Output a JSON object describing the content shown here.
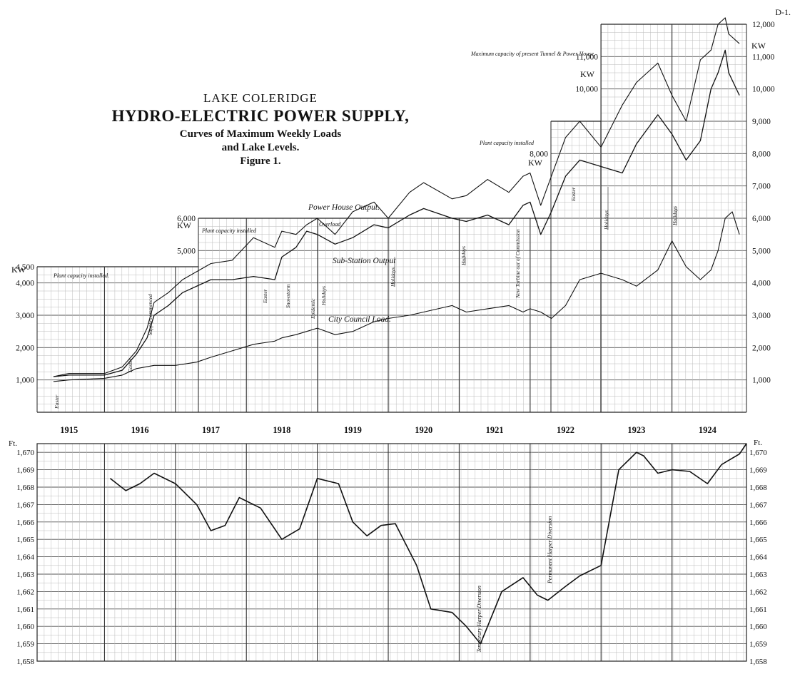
{
  "sheet_label": "D-1.",
  "title": {
    "line1": "LAKE COLERIDGE",
    "line2": "HYDRO-ELECTRIC POWER SUPPLY,",
    "line3": "Curves of Maximum Weekly Loads",
    "line4": "and Lake Levels.",
    "line5": "Figure 1."
  },
  "chart_data": [
    {
      "type": "line",
      "title": "Curves of Maximum Weekly Loads",
      "xlabel": "",
      "ylabel": "KW",
      "x_tick_labels": [
        "1915",
        "1916",
        "1917",
        "1918",
        "1919",
        "1920",
        "1921",
        "1922",
        "1923",
        "1924"
      ],
      "xlim": [
        1914.55,
        1924.55
      ],
      "ylim": [
        0,
        12000
      ],
      "y_tick_labels_left": [
        "1,000",
        "2,000",
        "3,000",
        "4,000",
        "4,500",
        "5,000",
        "6,000",
        "8,000",
        "10,000",
        "11,000"
      ],
      "y_tick_labels_right": [
        "1,000",
        "2,000",
        "3,000",
        "4,000",
        "5,000",
        "6,000",
        "7,000",
        "8,000",
        "9,000",
        "10,000",
        "11,000",
        "12,000"
      ],
      "unit_labels": [
        "KW",
        "KW",
        "KW",
        "KW",
        "KW"
      ],
      "series": [
        {
          "name": "Power House Output.",
          "x": [
            1914.78,
            1915.0,
            1915.5,
            1915.75,
            1915.95,
            1916.1,
            1916.2,
            1916.4,
            1916.6,
            1917.0,
            1917.3,
            1917.6,
            1917.9,
            1918.0,
            1918.2,
            1918.35,
            1918.5,
            1918.75,
            1919.0,
            1919.3,
            1919.5,
            1919.8,
            1920.0,
            1920.4,
            1920.6,
            1920.9,
            1921.2,
            1921.4,
            1921.5,
            1921.65,
            1921.8,
            1922.0,
            1922.2,
            1922.5,
            1922.8,
            1923.0,
            1923.3,
            1923.5,
            1923.7,
            1923.9,
            1924.05,
            1924.15,
            1924.25,
            1924.3,
            1924.45
          ],
          "y": [
            1100,
            1200,
            1200,
            1400,
            1900,
            2600,
            3400,
            3700,
            4100,
            4600,
            4700,
            5400,
            5100,
            5600,
            5500,
            5800,
            6000,
            5500,
            6200,
            6500,
            6000,
            6800,
            7100,
            6600,
            6700,
            7200,
            6800,
            7300,
            7400,
            6400,
            7300,
            8500,
            9000,
            8200,
            9500,
            10200,
            10800,
            9800,
            9000,
            10900,
            11200,
            12000,
            12200,
            11700,
            11400
          ]
        },
        {
          "name": "Sub-Station Output",
          "x": [
            1914.78,
            1915.0,
            1915.5,
            1915.75,
            1915.95,
            1916.1,
            1916.2,
            1916.4,
            1916.6,
            1917.0,
            1917.3,
            1917.6,
            1917.9,
            1918.0,
            1918.2,
            1918.35,
            1918.5,
            1918.75,
            1919.0,
            1919.3,
            1919.5,
            1919.8,
            1920.0,
            1920.4,
            1920.6,
            1920.9,
            1921.2,
            1921.4,
            1921.5,
            1921.65,
            1921.8,
            1922.0,
            1922.2,
            1922.5,
            1922.8,
            1923.0,
            1923.3,
            1923.5,
            1923.7,
            1923.9,
            1924.05,
            1924.15,
            1924.25,
            1924.3,
            1924.45
          ],
          "y": [
            1100,
            1150,
            1150,
            1300,
            1800,
            2300,
            3000,
            3300,
            3700,
            4100,
            4100,
            4200,
            4100,
            4800,
            5100,
            5600,
            5500,
            5200,
            5400,
            5800,
            5700,
            6100,
            6300,
            6000,
            5900,
            6100,
            5800,
            6400,
            6500,
            5500,
            6200,
            7300,
            7800,
            7600,
            7400,
            8300,
            9200,
            8600,
            7800,
            8400,
            10000,
            10500,
            11200,
            10500,
            9800
          ]
        },
        {
          "name": "City Council Load.",
          "x": [
            1914.78,
            1915.0,
            1915.5,
            1915.75,
            1915.95,
            1916.2,
            1916.5,
            1916.8,
            1917.0,
            1917.3,
            1917.6,
            1917.9,
            1918.0,
            1918.2,
            1918.35,
            1918.5,
            1918.75,
            1919.0,
            1919.3,
            1919.5,
            1919.8,
            1920.0,
            1920.4,
            1920.6,
            1920.9,
            1921.2,
            1921.4,
            1921.5,
            1921.65,
            1921.8,
            1922.0,
            1922.2,
            1922.5,
            1922.8,
            1923.0,
            1923.3,
            1923.5,
            1923.7,
            1923.9,
            1924.05,
            1924.15,
            1924.25,
            1924.35,
            1924.45
          ],
          "y": [
            950,
            1000,
            1050,
            1150,
            1350,
            1450,
            1450,
            1550,
            1700,
            1900,
            2100,
            2200,
            2300,
            2400,
            2500,
            2600,
            2400,
            2500,
            2800,
            2900,
            3000,
            3100,
            3300,
            3100,
            3200,
            3300,
            3100,
            3200,
            3100,
            2900,
            3300,
            4100,
            4300,
            4100,
            3900,
            4400,
            5300,
            4500,
            4100,
            4400,
            5000,
            6000,
            6200,
            5500
          ]
        }
      ],
      "annotations": [
        "Plant capacity installed.",
        "Plant capacity installed",
        "Plant capacity installed",
        "Maximum capacity of present Tunnel & Power House.",
        "Overload",
        "Easter",
        "Easter",
        "Supply commenced",
        "Easter",
        "Snowstorm",
        "Epidemic",
        "Holidays",
        "Holidays",
        "Holidays",
        "New Turbine out of Commission",
        "Easter",
        "Holidays",
        "Holidays"
      ]
    },
    {
      "type": "line",
      "title": "Lake Levels",
      "xlabel": "",
      "ylabel": "Ft.",
      "x_tick_labels": [
        "1915",
        "1916",
        "1917",
        "1918",
        "1919",
        "1920",
        "1921",
        "1922",
        "1923",
        "1924"
      ],
      "xlim": [
        1914.55,
        1924.55
      ],
      "ylim": [
        1658,
        1670.5
      ],
      "y_tick_labels": [
        "1,658",
        "1,659",
        "1,660",
        "1,661",
        "1,662",
        "1,663",
        "1,664",
        "1,665",
        "1,666",
        "1,667",
        "1,668",
        "1,669",
        "1,670"
      ],
      "unit_labels": [
        "Ft.",
        "Ft."
      ],
      "series": [
        {
          "name": "Lake Level",
          "x": [
            1915.58,
            1915.8,
            1916.0,
            1916.2,
            1916.5,
            1916.8,
            1917.0,
            1917.2,
            1917.4,
            1917.7,
            1918.0,
            1918.25,
            1918.5,
            1918.8,
            1919.0,
            1919.2,
            1919.4,
            1919.6,
            1919.9,
            1920.1,
            1920.4,
            1920.6,
            1920.8,
            1921.1,
            1921.4,
            1921.6,
            1921.75,
            1922.0,
            1922.2,
            1922.5,
            1922.75,
            1923.0,
            1923.1,
            1923.3,
            1923.5,
            1923.75,
            1924.0,
            1924.2,
            1924.45,
            1924.55
          ],
          "y": [
            1668.5,
            1667.8,
            1668.2,
            1668.8,
            1668.2,
            1667.0,
            1665.5,
            1665.8,
            1667.4,
            1666.8,
            1665.0,
            1665.6,
            1668.5,
            1668.2,
            1666.0,
            1665.2,
            1665.8,
            1665.9,
            1663.5,
            1661.0,
            1660.8,
            1660.0,
            1659.0,
            1662.0,
            1662.8,
            1661.8,
            1661.5,
            1662.3,
            1662.9,
            1663.5,
            1669.0,
            1670.0,
            1669.8,
            1668.8,
            1669.0,
            1668.9,
            1668.2,
            1669.3,
            1669.9,
            1670.5
          ]
        }
      ],
      "annotations": [
        "Temporary Harper Diversion",
        "Permanent Harper Diversion"
      ]
    }
  ]
}
